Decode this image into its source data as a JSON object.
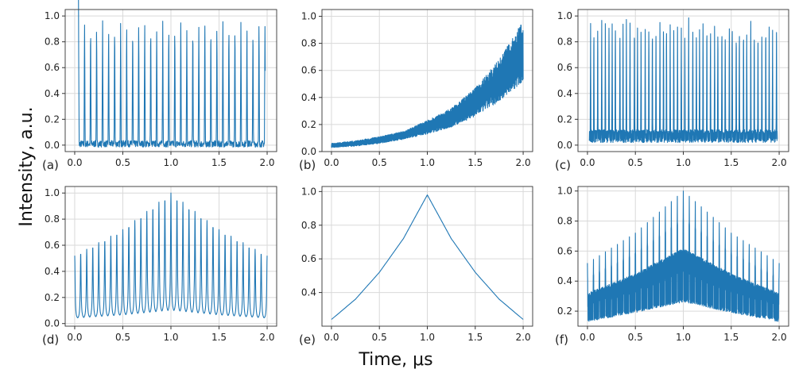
{
  "figure": {
    "ylabel": "Intensity, a.u.",
    "xlabel": "Time, μs",
    "series_color": "#1f77b4"
  },
  "chart_data": [
    {
      "type": "line",
      "panel": "(a)",
      "xlim": [
        0.0,
        2.0
      ],
      "ylim": [
        -0.05,
        1.05
      ],
      "xticks": [
        "0.0",
        "0.5",
        "1.0",
        "1.5",
        "2.0"
      ],
      "yticks": [
        "0.0",
        "0.2",
        "0.4",
        "0.6",
        "0.8",
        "1.0"
      ],
      "grid": true,
      "pattern": "periodic narrow pulses on near-zero noisy baseline",
      "pulse_count": 33,
      "pulse_peak": 0.97,
      "baseline": 0.01
    },
    {
      "type": "line",
      "panel": "(b)",
      "xlim": [
        0.0,
        2.0
      ],
      "ylim": [
        0.0,
        1.05
      ],
      "xticks": [
        "0.0",
        "0.5",
        "1.0",
        "1.5",
        "2.0"
      ],
      "yticks": [
        "0.0",
        "0.2",
        "0.4",
        "0.6",
        "0.8",
        "1.0"
      ],
      "grid": true,
      "pattern": "dense oscillations with exponentially growing envelope",
      "x": [
        0.0,
        0.25,
        0.5,
        0.75,
        1.0,
        1.25,
        1.5,
        1.75,
        2.0
      ],
      "envelope_lower": [
        0.03,
        0.04,
        0.06,
        0.09,
        0.13,
        0.18,
        0.26,
        0.37,
        0.52
      ],
      "envelope_upper": [
        0.06,
        0.08,
        0.11,
        0.15,
        0.23,
        0.32,
        0.47,
        0.68,
        0.97
      ]
    },
    {
      "type": "line",
      "panel": "(c)",
      "xlim": [
        0.0,
        2.0
      ],
      "ylim": [
        -0.05,
        1.05
      ],
      "xticks": [
        "0.0",
        "0.5",
        "1.0",
        "1.5",
        "2.0"
      ],
      "yticks": [
        "0.0",
        "0.2",
        "0.4",
        "0.6",
        "0.8",
        "1.0"
      ],
      "grid": true,
      "pattern": "irregular pulses on noisy baseline band",
      "pulse_count": 52,
      "pulse_peak_range": [
        0.92,
        1.0
      ],
      "baseline_band": [
        0.02,
        0.12
      ]
    },
    {
      "type": "line",
      "panel": "(d)",
      "xlim": [
        0.0,
        2.0
      ],
      "ylim": [
        -0.02,
        1.05
      ],
      "xticks": [
        "0.0",
        "0.5",
        "1.0",
        "1.5",
        "2.0"
      ],
      "yticks": [
        "0.0",
        "0.2",
        "0.4",
        "0.6",
        "0.8",
        "1.0"
      ],
      "grid": true,
      "pattern": "periodic pulses with triangular peak envelope",
      "pulse_count": 33,
      "x": [
        0.0,
        0.5,
        1.0,
        1.5,
        2.0
      ],
      "peak_envelope": [
        0.52,
        0.72,
        1.0,
        0.72,
        0.52
      ],
      "baseline": [
        0.03,
        0.05,
        0.08,
        0.05,
        0.03
      ]
    },
    {
      "type": "line",
      "panel": "(e)",
      "xlim": [
        0.0,
        2.0
      ],
      "ylim": [
        0.2,
        1.03
      ],
      "xticks": [
        "0.0",
        "0.5",
        "1.0",
        "1.5",
        "2.0"
      ],
      "yticks": [
        "0.4",
        "0.6",
        "0.8",
        "1.0"
      ],
      "grid": true,
      "pattern": "smooth cusp-shaped curve peaking at x = 1.0",
      "x": [
        0.0,
        0.25,
        0.5,
        0.75,
        1.0,
        1.25,
        1.5,
        1.75,
        2.0
      ],
      "y": [
        0.24,
        0.36,
        0.52,
        0.72,
        0.98,
        0.72,
        0.52,
        0.36,
        0.24
      ]
    },
    {
      "type": "line",
      "panel": "(f)",
      "xlim": [
        0.0,
        2.0
      ],
      "ylim": [
        0.1,
        1.03
      ],
      "xticks": [
        "0.0",
        "0.5",
        "1.0",
        "1.5",
        "2.0"
      ],
      "yticks": [
        "0.2",
        "0.4",
        "0.6",
        "0.8",
        "1.0"
      ],
      "grid": true,
      "pattern": "pulses on oscillating band with triangular envelopes",
      "pulse_count": 33,
      "x": [
        0.0,
        0.5,
        1.0,
        1.5,
        2.0
      ],
      "peak_envelope": [
        0.52,
        0.72,
        1.0,
        0.72,
        0.52
      ],
      "band_upper": [
        0.32,
        0.45,
        0.62,
        0.45,
        0.32
      ],
      "band_lower": [
        0.13,
        0.19,
        0.26,
        0.19,
        0.13
      ]
    }
  ]
}
